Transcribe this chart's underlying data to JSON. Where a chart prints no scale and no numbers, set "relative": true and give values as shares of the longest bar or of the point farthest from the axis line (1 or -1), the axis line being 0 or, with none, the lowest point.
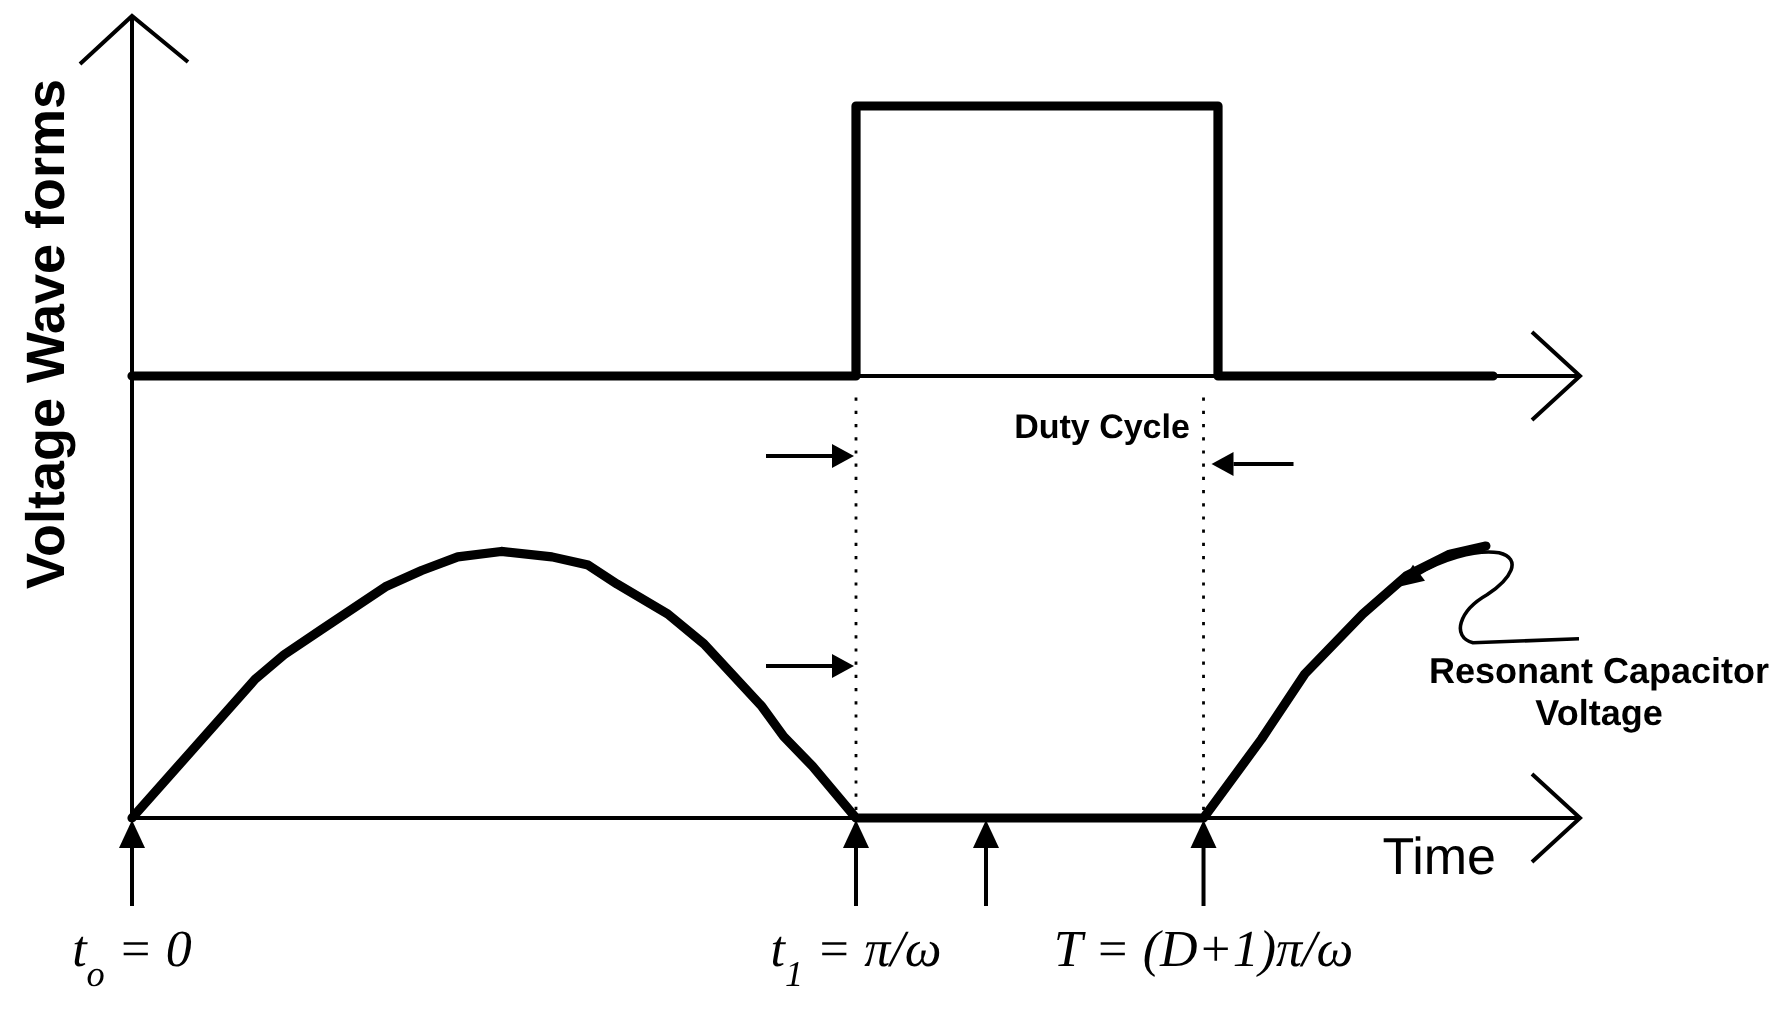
{
  "chart_data": [
    {
      "type": "line",
      "ylabel": "Voltage Wave forms",
      "relative": true,
      "xlim": [
        0,
        2
      ],
      "tick_labels": false,
      "series": [
        {
          "color": "#000000",
          "x": [
            0,
            1,
            1,
            1.5,
            1.5,
            1.88
          ],
          "values": [
            0,
            0,
            1,
            1,
            0,
            0
          ]
        }
      ]
    },
    {
      "type": "line",
      "xlabel": "Time",
      "relative": true,
      "xlim": [
        0,
        2
      ],
      "tick_labels": "x",
      "xticks": [
        {
          "value": 0,
          "label": "t$_{o}$ = 0"
        },
        {
          "value": 1,
          "label": "t$_{1}$ = π/ω"
        },
        {
          "value": 1.48,
          "label": "T = (D+1)π/ω"
        }
      ],
      "series": [
        {
          "color": "#000000",
          "x": [
            0,
            0.08,
            0.17,
            0.21,
            0.26,
            0.35,
            0.4,
            0.45,
            0.51,
            0.58,
            0.63,
            0.67,
            0.74,
            0.79,
            0.87,
            0.9,
            0.94,
            1,
            1.48,
            1.56,
            1.62,
            1.7,
            1.76,
            1.82,
            1.87
          ],
          "values": [
            0,
            0.24,
            0.51,
            0.6,
            0.69,
            0.85,
            0.91,
            0.96,
            0.98,
            0.96,
            0.93,
            0.86,
            0.75,
            0.64,
            0.41,
            0.3,
            0.19,
            0,
            0,
            0.29,
            0.53,
            0.75,
            0.89,
            0.97,
            1
          ]
        }
      ],
      "ref_lines": [
        {
          "axis": "x",
          "value": 1,
          "line_style": "dotted"
        },
        {
          "axis": "x",
          "value": 1.48,
          "line_style": "dotted"
        }
      ],
      "annotations": [
        "Duty Cycle",
        {
          "text": "Resonant Capacitor\nVoltage",
          "x": 1.75,
          "y": 0.85
        }
      ]
    }
  ]
}
